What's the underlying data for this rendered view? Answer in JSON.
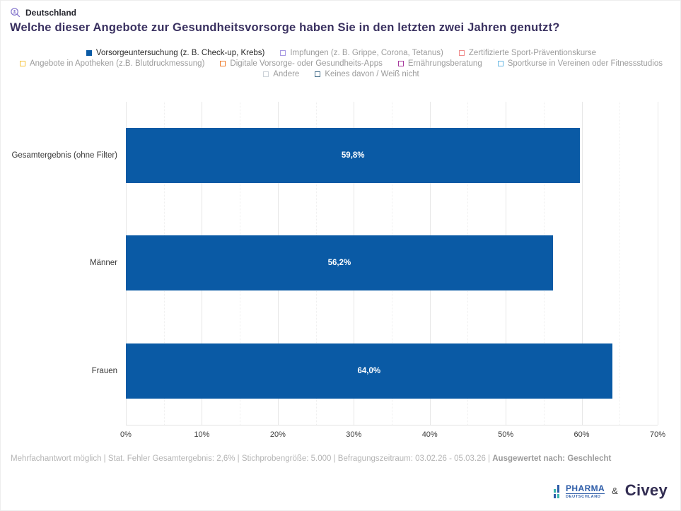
{
  "header": {
    "region": "Deutschland",
    "title": "Welche dieser Angebote zur Gesundheitsvorsorge haben Sie in den letzten zwei Jahren genutzt?"
  },
  "legend": {
    "items": [
      {
        "label": "Vorsorgeuntersuchung (z. B. Check-up, Krebs)",
        "color": "#0a5aa5",
        "selected": true,
        "row": 1
      },
      {
        "label": "Impfungen (z. B. Grippe, Corona, Tetanus)",
        "color": "#a89ae3",
        "selected": false,
        "row": 1
      },
      {
        "label": "Zertifizierte Sport-Präventionskurse",
        "color": "#f08c8c",
        "selected": false,
        "row": 1
      },
      {
        "label": "Angebote in Apotheken (z.B. Blutdruckmessung)",
        "color": "#f5c33b",
        "selected": false,
        "row": 2
      },
      {
        "label": "Digitale Vorsorge- oder Gesundheits-Apps",
        "color": "#ee7d2d",
        "selected": false,
        "row": 2
      },
      {
        "label": "Ernährungsberatung",
        "color": "#a83a9e",
        "selected": false,
        "row": 2
      },
      {
        "label": "Sportkurse in Vereinen oder Fitnessstudios",
        "color": "#66b7e3",
        "selected": false,
        "row": 2
      },
      {
        "label": "Andere",
        "color": "#ccd2d8",
        "selected": false,
        "row": 3
      },
      {
        "label": "Keines davon / Weiß nicht",
        "color": "#47708c",
        "selected": false,
        "row": 3
      }
    ]
  },
  "chart_data": {
    "type": "bar",
    "orientation": "horizontal",
    "title": "Welche dieser Angebote zur Gesundheitsvorsorge haben Sie in den letzten zwei Jahren genutzt?",
    "series_name": "Vorsorgeuntersuchung (z. B. Check-up, Krebs)",
    "categories": [
      "Gesamtergebnis (ohne Filter)",
      "Männer",
      "Frauen"
    ],
    "values": [
      59.8,
      56.2,
      64.0
    ],
    "value_labels": [
      "59,8%",
      "56,2%",
      "64,0%"
    ],
    "bar_color": "#0a5aa5",
    "xlim": [
      0,
      70
    ],
    "major_ticks": [
      {
        "value": 0,
        "label": "0%"
      },
      {
        "value": 10,
        "label": "10%"
      },
      {
        "value": 20,
        "label": "20%"
      },
      {
        "value": 30,
        "label": "30%"
      },
      {
        "value": 40,
        "label": "40%"
      },
      {
        "value": 50,
        "label": "50%"
      },
      {
        "value": 60,
        "label": "60%"
      },
      {
        "value": 70,
        "label": "70%"
      }
    ],
    "minor_tick_step": 5,
    "grid": true,
    "legend_position": "top"
  },
  "footer": {
    "meta": "Mehrfachantwort möglich | Stat. Fehler Gesamtergebnis: 2,6% | Stichprobengröße: 5.000 | Befragungszeitraum: 03.02.26 - 05.03.26 | ",
    "highlight": "Ausgewertet nach: Geschlecht"
  },
  "branding": {
    "pharma_line1": "PHARMA",
    "pharma_line2": "DEUTSCHLAND",
    "ampersand": "&",
    "partner": "Civey"
  }
}
